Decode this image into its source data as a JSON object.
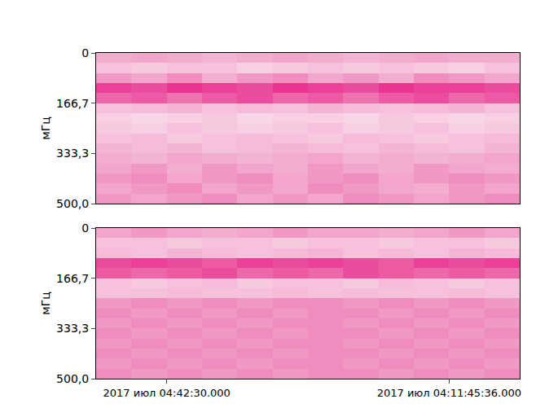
{
  "chart_data": [
    {
      "type": "heatmap",
      "ylabel": "мГц",
      "tick_labels": "y",
      "xlim": [
        0,
        6
      ],
      "ylim": [
        500,
        0
      ],
      "yticks": [
        0,
        {
          "value": 166.7,
          "label": "166,7"
        },
        {
          "value": 333.3,
          "label": "333,3"
        },
        {
          "value": 500,
          "label": "500,0"
        }
      ],
      "zlim": [
        0,
        1
      ],
      "x": [
        0.25,
        0.75,
        1.25,
        1.75,
        2.25,
        2.75,
        3.25,
        3.75,
        4.25,
        4.75,
        5.25,
        5.75
      ],
      "y": [
        16.7,
        50,
        83.3,
        116.7,
        150,
        183.3,
        216.7,
        250,
        283.3,
        316.7,
        350,
        383.3,
        416.7,
        450,
        483.3
      ],
      "z": [
        [
          0.45,
          0.5,
          0.45,
          0.4,
          0.45,
          0.5,
          0.45,
          0.4,
          0.45,
          0.5,
          0.45,
          0.45
        ],
        [
          0.3,
          0.25,
          0.3,
          0.3,
          0.2,
          0.25,
          0.3,
          0.25,
          0.3,
          0.25,
          0.2,
          0.3
        ],
        [
          0.55,
          0.5,
          0.6,
          0.45,
          0.55,
          0.6,
          0.5,
          0.55,
          0.45,
          0.6,
          0.55,
          0.5
        ],
        [
          0.9,
          0.85,
          0.95,
          0.9,
          0.85,
          0.95,
          0.9,
          0.85,
          0.95,
          0.9,
          0.9,
          0.85
        ],
        [
          0.75,
          0.8,
          0.7,
          0.8,
          0.85,
          0.75,
          0.8,
          0.7,
          0.8,
          0.85,
          0.75,
          0.8
        ],
        [
          0.3,
          0.35,
          0.4,
          0.3,
          0.35,
          0.3,
          0.4,
          0.35,
          0.3,
          0.35,
          0.4,
          0.3
        ],
        [
          0.2,
          0.15,
          0.2,
          0.25,
          0.15,
          0.2,
          0.2,
          0.15,
          0.25,
          0.2,
          0.15,
          0.2
        ],
        [
          0.25,
          0.2,
          0.3,
          0.25,
          0.2,
          0.25,
          0.3,
          0.2,
          0.25,
          0.3,
          0.2,
          0.25
        ],
        [
          0.3,
          0.35,
          0.25,
          0.3,
          0.35,
          0.3,
          0.25,
          0.35,
          0.3,
          0.25,
          0.3,
          0.35
        ],
        [
          0.4,
          0.35,
          0.4,
          0.3,
          0.35,
          0.4,
          0.35,
          0.3,
          0.4,
          0.35,
          0.3,
          0.4
        ],
        [
          0.45,
          0.4,
          0.5,
          0.45,
          0.4,
          0.45,
          0.5,
          0.4,
          0.45,
          0.4,
          0.45,
          0.5
        ],
        [
          0.5,
          0.55,
          0.45,
          0.55,
          0.5,
          0.45,
          0.55,
          0.5,
          0.45,
          0.55,
          0.5,
          0.45
        ],
        [
          0.55,
          0.6,
          0.5,
          0.55,
          0.6,
          0.5,
          0.55,
          0.6,
          0.5,
          0.55,
          0.6,
          0.55
        ],
        [
          0.5,
          0.55,
          0.6,
          0.5,
          0.55,
          0.5,
          0.6,
          0.55,
          0.5,
          0.45,
          0.55,
          0.5
        ],
        [
          0.55,
          0.5,
          0.55,
          0.6,
          0.5,
          0.55,
          0.5,
          0.6,
          0.55,
          0.5,
          0.55,
          0.6
        ]
      ]
    },
    {
      "type": "heatmap",
      "ylabel": "мГц",
      "xlim": [
        0,
        6
      ],
      "xticks": [
        {
          "value": 1,
          "label": "2017 июл 04:42:30.000"
        },
        {
          "value": 5,
          "label": "2017 июл 04:11:45:36.000"
        }
      ],
      "ylim": [
        500,
        0
      ],
      "yticks": [
        0,
        {
          "value": 166.7,
          "label": "166,7"
        },
        {
          "value": 333.3,
          "label": "333,3"
        },
        {
          "value": 500,
          "label": "500,0"
        }
      ],
      "zlim": [
        0,
        1
      ],
      "x": [
        0.25,
        0.75,
        1.25,
        1.75,
        2.25,
        2.75,
        3.25,
        3.75,
        4.25,
        4.75,
        5.25,
        5.75
      ],
      "y": [
        16.7,
        50,
        83.3,
        116.7,
        150,
        183.3,
        216.7,
        250,
        283.3,
        316.7,
        350,
        383.3,
        416.7,
        450,
        483.3
      ],
      "z": [
        [
          0.5,
          0.55,
          0.5,
          0.45,
          0.5,
          0.55,
          0.5,
          0.5,
          0.45,
          0.5,
          0.55,
          0.5
        ],
        [
          0.3,
          0.3,
          0.25,
          0.3,
          0.3,
          0.25,
          0.3,
          0.3,
          0.25,
          0.3,
          0.3,
          0.25
        ],
        [
          0.35,
          0.3,
          0.4,
          0.35,
          0.3,
          0.35,
          0.4,
          0.3,
          0.35,
          0.3,
          0.4,
          0.35
        ],
        [
          0.85,
          0.9,
          0.85,
          0.8,
          0.9,
          0.85,
          0.9,
          0.85,
          0.8,
          0.9,
          0.85,
          0.9
        ],
        [
          0.8,
          0.75,
          0.8,
          0.85,
          0.75,
          0.8,
          0.75,
          0.85,
          0.8,
          0.75,
          0.8,
          0.75
        ],
        [
          0.3,
          0.25,
          0.3,
          0.35,
          0.25,
          0.3,
          0.3,
          0.25,
          0.35,
          0.3,
          0.25,
          0.3
        ],
        [
          0.3,
          0.3,
          0.35,
          0.3,
          0.3,
          0.35,
          0.3,
          0.35,
          0.3,
          0.3,
          0.35,
          0.3
        ],
        [
          0.55,
          0.6,
          0.55,
          0.6,
          0.55,
          0.6,
          0.6,
          0.55,
          0.6,
          0.55,
          0.6,
          0.55
        ],
        [
          0.6,
          0.55,
          0.6,
          0.55,
          0.6,
          0.55,
          0.6,
          0.6,
          0.55,
          0.6,
          0.55,
          0.6
        ],
        [
          0.55,
          0.6,
          0.55,
          0.6,
          0.55,
          0.6,
          0.6,
          0.55,
          0.6,
          0.55,
          0.6,
          0.55
        ],
        [
          0.6,
          0.55,
          0.6,
          0.55,
          0.6,
          0.55,
          0.6,
          0.6,
          0.55,
          0.6,
          0.55,
          0.6
        ],
        [
          0.55,
          0.6,
          0.55,
          0.6,
          0.55,
          0.6,
          0.6,
          0.55,
          0.6,
          0.55,
          0.6,
          0.55
        ],
        [
          0.6,
          0.55,
          0.6,
          0.55,
          0.6,
          0.55,
          0.6,
          0.6,
          0.55,
          0.6,
          0.55,
          0.6
        ],
        [
          0.55,
          0.6,
          0.55,
          0.6,
          0.55,
          0.6,
          0.6,
          0.55,
          0.6,
          0.55,
          0.6,
          0.55
        ],
        [
          0.6,
          0.55,
          0.6,
          0.55,
          0.6,
          0.55,
          0.6,
          0.6,
          0.55,
          0.6,
          0.55,
          0.6
        ]
      ]
    }
  ]
}
